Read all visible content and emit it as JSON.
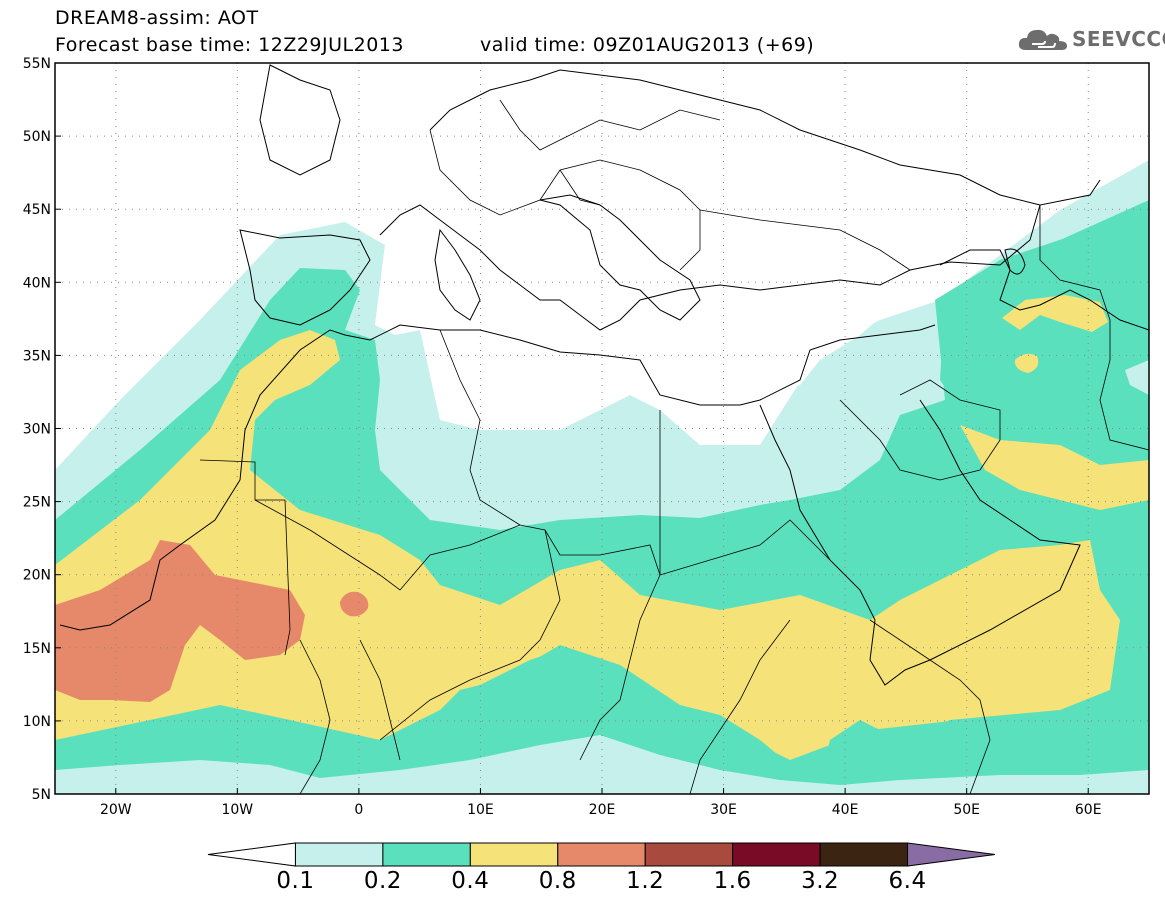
{
  "header": {
    "title": "DREAM8-assim: AOT",
    "base_time": "Forecast base time: 12Z29JUL2013",
    "valid_time": "valid time: 09Z01AUG2013 (+69)",
    "logo_text": "SEEVCCC",
    "logo_icon": "cloud-icon"
  },
  "map": {
    "lon_range": [
      -25,
      65
    ],
    "lat_range": [
      5,
      55
    ],
    "lat_labels": [
      "55N",
      "50N",
      "45N",
      "40N",
      "35N",
      "30N",
      "25N",
      "20N",
      "15N",
      "10N",
      "5N"
    ],
    "lon_labels": [
      "20W",
      "10W",
      "0",
      "10E",
      "20E",
      "30E",
      "40E",
      "50E",
      "60E"
    ],
    "gridlines": "dotted"
  },
  "colorbar": {
    "labels": [
      "0.1",
      "0.2",
      "0.4",
      "0.8",
      "1.2",
      "1.6",
      "3.2",
      "6.4"
    ],
    "colors": [
      "#ffffff",
      "#c5f0ec",
      "#5ae0bd",
      "#f5e278",
      "#e6896a",
      "#a84a3d",
      "#7a0b26",
      "#3c2412",
      "#8a6ca5"
    ]
  }
}
